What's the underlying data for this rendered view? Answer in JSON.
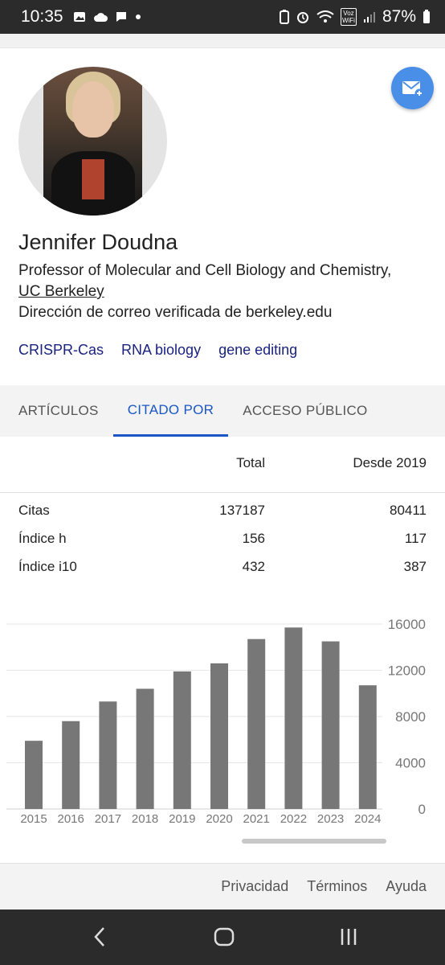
{
  "status_bar": {
    "time": "10:35",
    "battery": "87%",
    "network_label": "Voz WiFi"
  },
  "profile": {
    "name": "Jennifer Doudna",
    "affiliation_text": "Professor of Molecular and Cell Biology and Chemistry,",
    "institution": "UC Berkeley",
    "email_verified": "Dirección de correo verificada de berkeley.edu",
    "tags": [
      "CRISPR-Cas",
      "RNA biology",
      "gene editing"
    ]
  },
  "tabs": [
    {
      "label": "ARTÍCULOS",
      "active": false
    },
    {
      "label": "CITADO POR",
      "active": true
    },
    {
      "label": "ACCESO PÚBLICO",
      "active": false
    }
  ],
  "stats": {
    "header_total": "Total",
    "header_since": "Desde 2019",
    "rows": [
      {
        "label": "Citas",
        "total": "137187",
        "since": "80411"
      },
      {
        "label": "Índice h",
        "total": "156",
        "since": "117"
      },
      {
        "label": "Índice i10",
        "total": "432",
        "since": "387"
      }
    ]
  },
  "chart_data": {
    "type": "bar",
    "categories": [
      "2015",
      "2016",
      "2017",
      "2018",
      "2019",
      "2020",
      "2021",
      "2022",
      "2023",
      "2024"
    ],
    "values": [
      5900,
      7600,
      9300,
      10400,
      11900,
      12600,
      14700,
      15700,
      14500,
      10700
    ],
    "ylim": [
      0,
      16000
    ],
    "yticks": [
      0,
      4000,
      8000,
      12000,
      16000
    ],
    "bar_color": "#777777",
    "grid": true
  },
  "footer": {
    "links": [
      "Privacidad",
      "Términos",
      "Ayuda"
    ]
  },
  "colors": {
    "accent": "#1a56c4",
    "fab": "#4a8fe7",
    "tag": "#1a237e"
  }
}
